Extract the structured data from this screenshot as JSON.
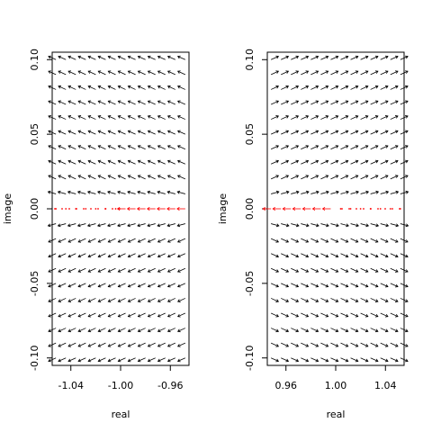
{
  "chart_data": [
    {
      "type": "vector_field",
      "xlabel": "real",
      "ylabel": "image",
      "xlim": [
        -1.055,
        -0.945
      ],
      "ylim": [
        -0.105,
        0.105
      ],
      "x_ticks": [
        -1.04,
        -1.0,
        -0.96
      ],
      "x_tick_labels": [
        "-1.04",
        "-1.00",
        "-0.96"
      ],
      "y_ticks": [
        0.1,
        0.05,
        0.0,
        -0.05,
        -0.1
      ],
      "y_tick_labels": [
        "0.10",
        "0.05",
        "0.00",
        "-0.05",
        "-0.10"
      ],
      "grid": false,
      "fixed_point": {
        "x": -1.0,
        "y": 0.0
      },
      "flow_direction_on_real_axis": "toward fixed point",
      "highlight_color": "#ff0000",
      "arrow_color": "#000000"
    },
    {
      "type": "vector_field",
      "xlabel": "real",
      "ylabel": "image",
      "xlim": [
        0.945,
        1.055
      ],
      "ylim": [
        -0.105,
        0.105
      ],
      "x_ticks": [
        0.96,
        1.0,
        1.04
      ],
      "x_tick_labels": [
        "0.96",
        "1.00",
        "1.04"
      ],
      "y_ticks": [
        0.1,
        0.05,
        0.0,
        -0.05,
        -0.1
      ],
      "y_tick_labels": [
        "0.10",
        "0.05",
        "0.00",
        "-0.05",
        "-0.10"
      ],
      "grid": false,
      "fixed_point": {
        "x": 1.0,
        "y": 0.0
      },
      "flow_direction_on_real_axis": "away from fixed point",
      "highlight_color": "#ff0000",
      "arrow_color": "#000000"
    }
  ]
}
